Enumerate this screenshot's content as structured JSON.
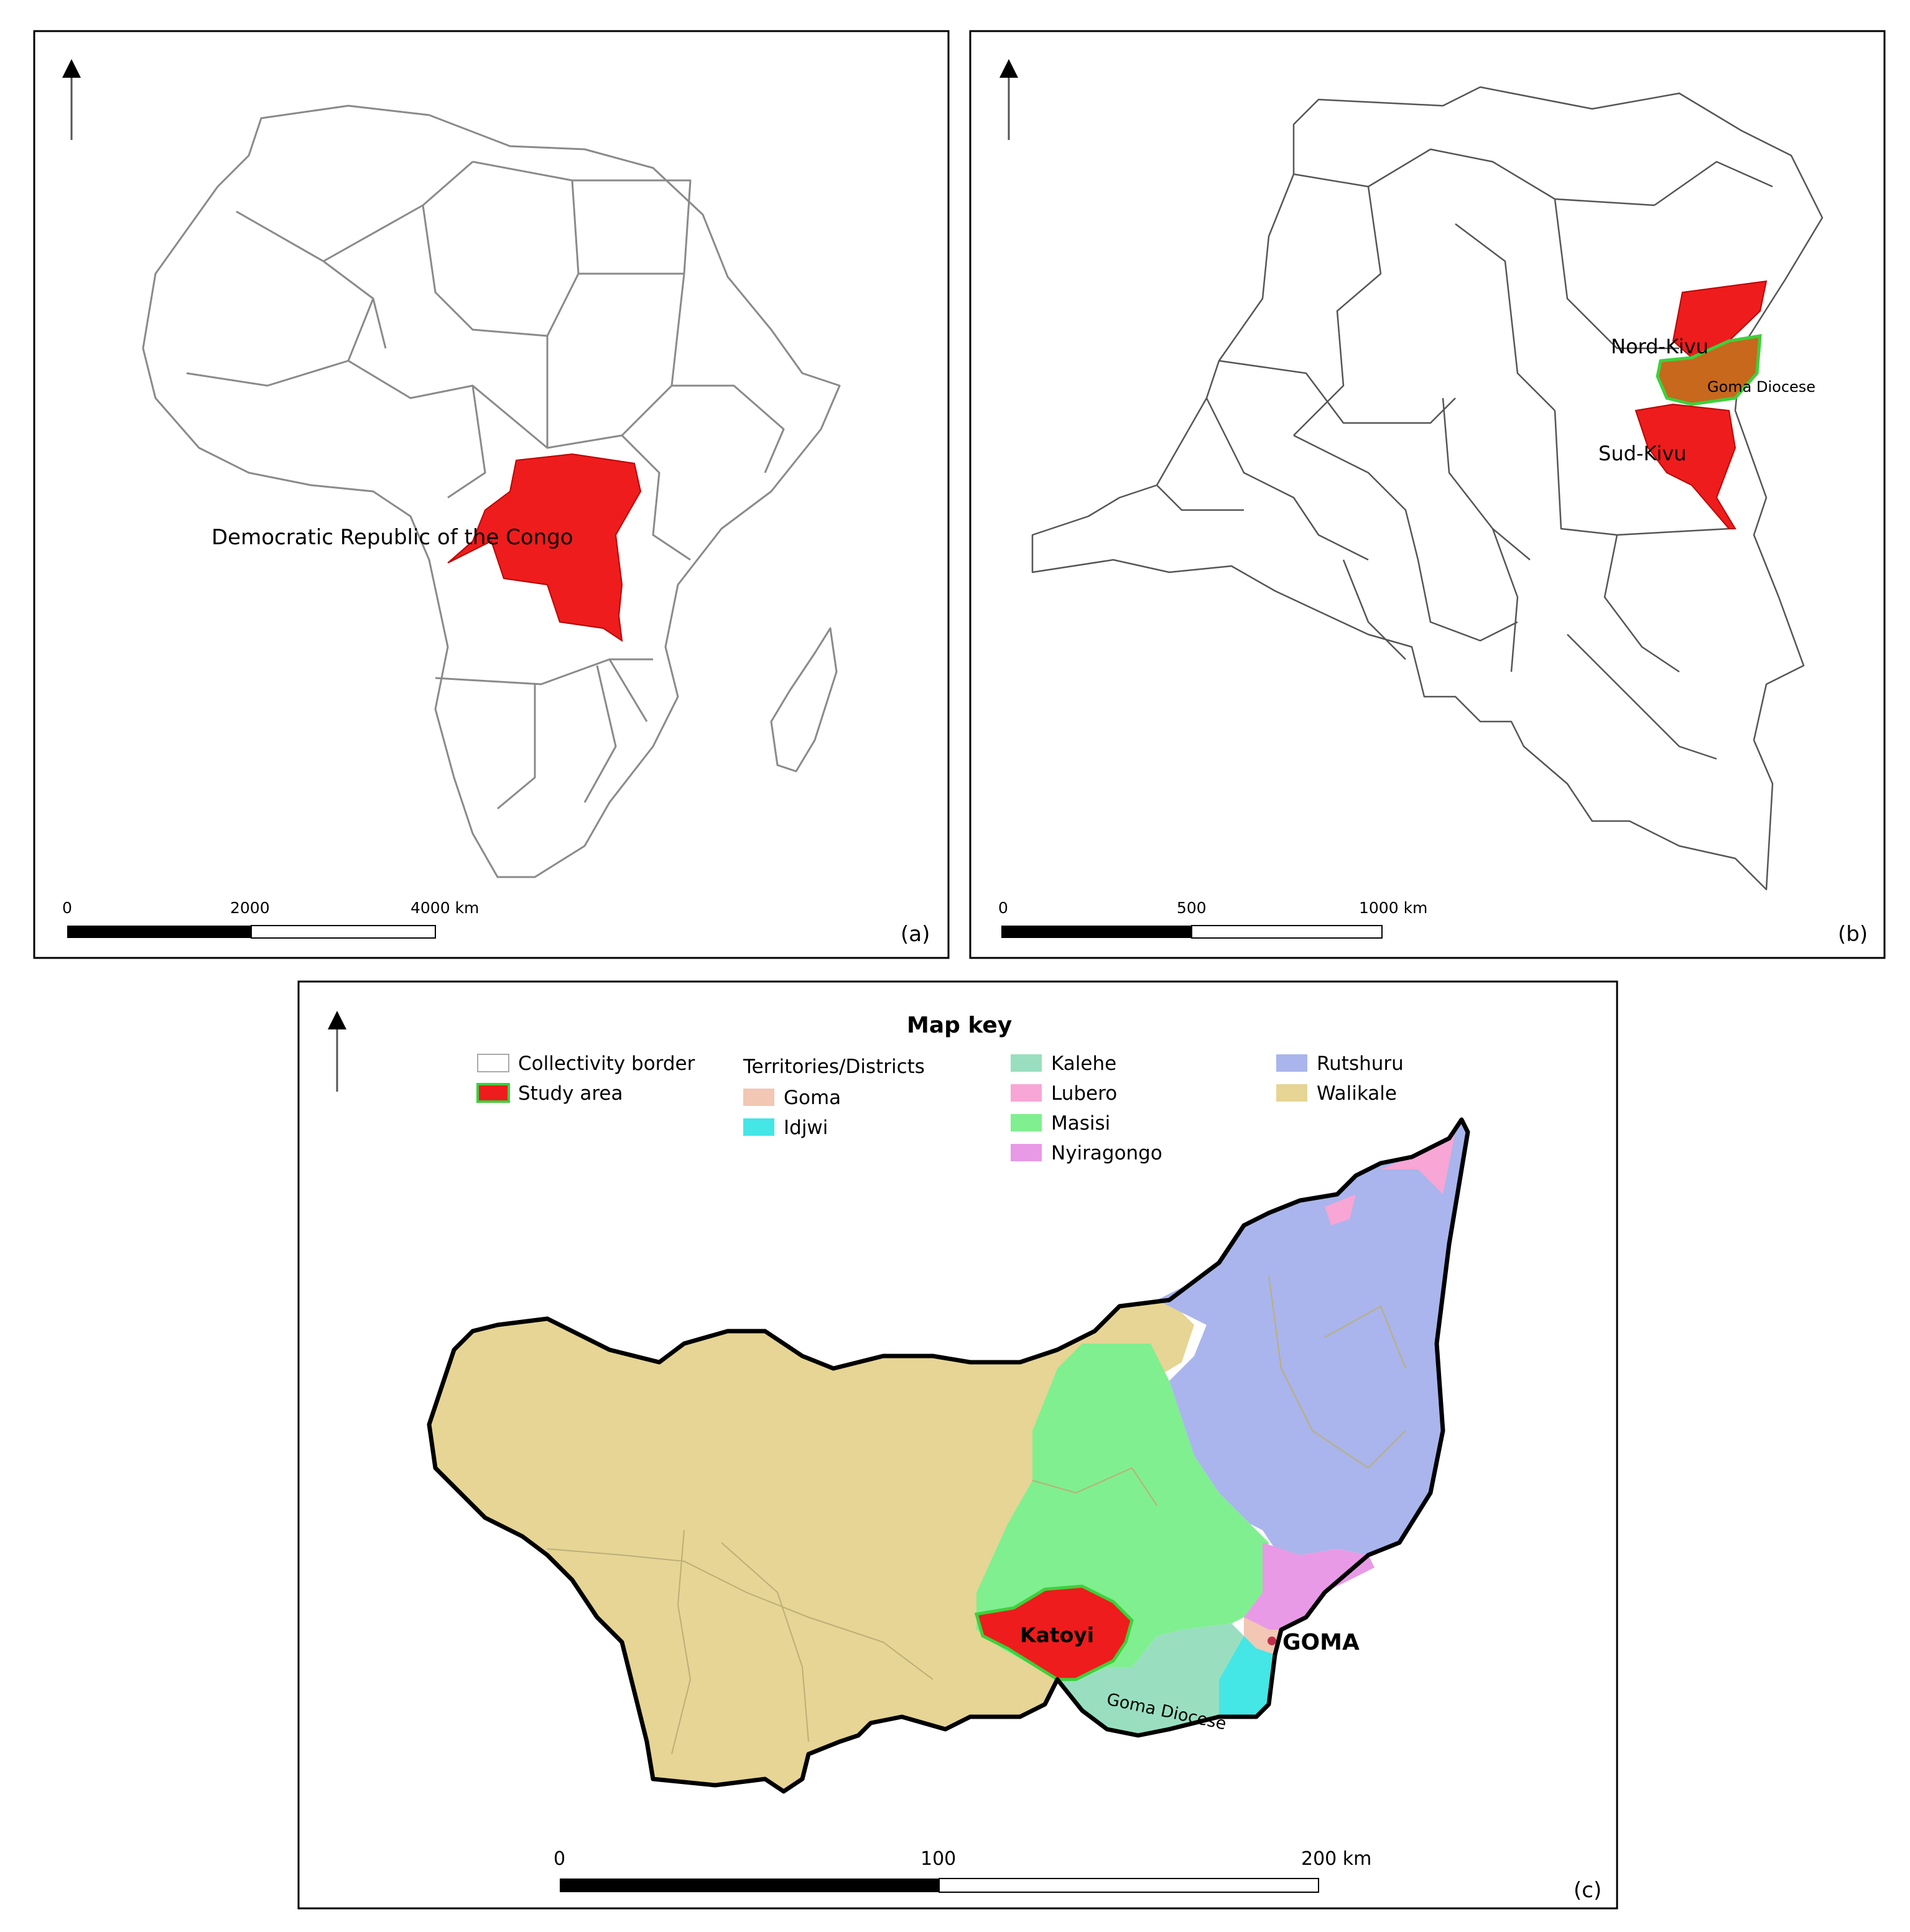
{
  "panel_a": {
    "country_label": "Democratic Republic of the Congo",
    "scale_labels": [
      "0",
      "2000",
      "4000 km"
    ],
    "panel_tag": "(a)"
  },
  "panel_b": {
    "province_labels": [
      "Nord-Kivu",
      "Sud-Kivu"
    ],
    "diocese_label": "Goma Diocese",
    "scale_labels": [
      "0",
      "500",
      "1000 km"
    ],
    "panel_tag": "(b)"
  },
  "panel_c": {
    "key_title": "Map key",
    "legend_left": [
      {
        "label": "Collectivity border",
        "color": "#ffffff"
      },
      {
        "label": "Study area",
        "color": "#ee1c1c"
      }
    ],
    "legend_group_title": "Territories/Districts",
    "legend_group": [
      {
        "label": "Goma",
        "color": "#f2c7b3"
      },
      {
        "label": "Idjwi",
        "color": "#44e6e6"
      }
    ],
    "legend_mid": [
      {
        "label": "Kalehe",
        "color": "#99dfbf"
      },
      {
        "label": "Lubero",
        "color": "#f7a6d6"
      },
      {
        "label": "Masisi",
        "color": "#80ef8f"
      },
      {
        "label": "Nyiragongo",
        "color": "#e89ae6"
      }
    ],
    "legend_right": [
      {
        "label": "Rutshuru",
        "color": "#a9b5ec"
      },
      {
        "label": "Walikale",
        "color": "#e6d594"
      }
    ],
    "study_area_label": "Katoyi",
    "city_label": "GOMA",
    "diocese_label": "Goma Diocese",
    "scale_labels": [
      "0",
      "100",
      "200 km"
    ],
    "panel_tag": "(c)"
  },
  "colors": {
    "highlight": "#ee1c1c",
    "diocese_fill": "#c8681c",
    "diocese_border": "#3cd13c",
    "city_dot": "#c0304a"
  }
}
